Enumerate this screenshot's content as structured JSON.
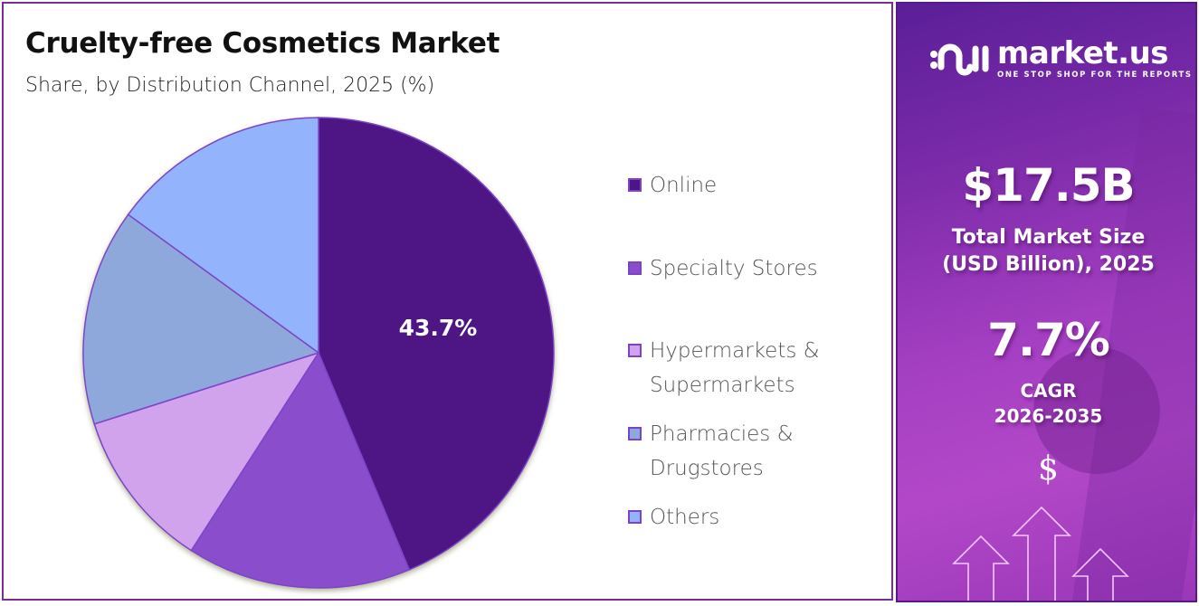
{
  "header": {
    "title": "Cruelty-free Cosmetics Market",
    "subtitle": "Share, by Distribution Channel, 2025 (%)"
  },
  "chart_data": {
    "type": "pie",
    "title": "Cruelty-free Cosmetics Market",
    "subtitle": "Share, by Distribution Channel, 2025 (%)",
    "categories": [
      "Online",
      "Specialty Stores",
      "Hypermarkets & Supermarkets",
      "Pharmacies & Drugstores",
      "Others"
    ],
    "values": [
      43.7,
      15.4,
      11.0,
      14.9,
      15.0
    ],
    "colors": [
      "#4e1684",
      "#8a4ecb",
      "#d1a3ec",
      "#8ea8db",
      "#93b4fc"
    ],
    "data_labels": [
      "43.7%",
      "",
      "",
      "",
      ""
    ],
    "legend_position": "right",
    "start_angle_deg": 0,
    "direction": "clockwise"
  },
  "legend": {
    "items": [
      {
        "label_lines": [
          "Online"
        ],
        "color": "#4e1684"
      },
      {
        "label_lines": [
          "Specialty Stores"
        ],
        "color": "#8a4ecb"
      },
      {
        "label_lines": [
          "Hypermarkets &",
          "Supermarkets"
        ],
        "color": "#d1a3ec"
      },
      {
        "label_lines": [
          "Pharmacies &",
          "Drugstores"
        ],
        "color": "#8ea8db"
      },
      {
        "label_lines": [
          "Others"
        ],
        "color": "#93b4fc"
      }
    ]
  },
  "sidebar": {
    "logo": {
      "name": "market.us",
      "tagline": "ONE STOP SHOP FOR THE REPORTS"
    },
    "market_size": {
      "value": "$17.5B",
      "label_line1": "Total Market Size",
      "label_line2": "(USD Billion), 2025"
    },
    "cagr": {
      "value": "7.7%",
      "label_line1": "CAGR",
      "label_line2": "2026-2035"
    },
    "dollar_symbol": "$",
    "accent_color": "#a53fc2"
  }
}
